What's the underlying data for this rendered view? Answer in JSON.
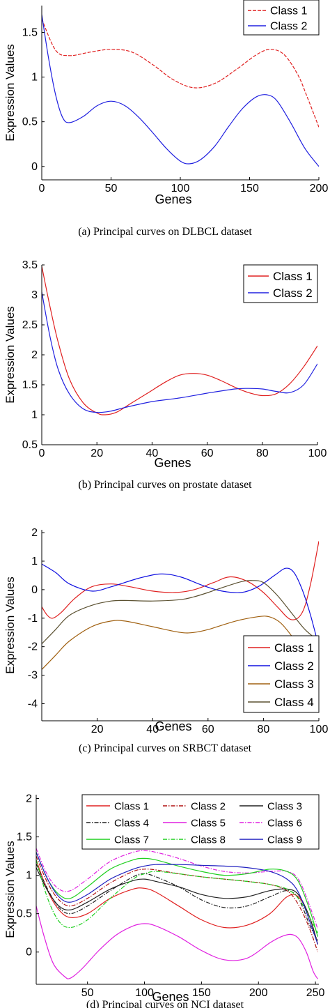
{
  "chart_data": [
    {
      "type": "line",
      "xlabel": "Genes",
      "ylabel": "Expression Values",
      "caption": "(a)  Principal curves on DLBCL dataset",
      "xlim": [
        0,
        200
      ],
      "ylim": [
        -0.15,
        1.8
      ],
      "xticks": [
        0,
        50,
        100,
        150,
        200
      ],
      "yticks": [
        0,
        0.5,
        1,
        1.5
      ],
      "xtick_labels": [
        "0",
        "50",
        "100",
        "150",
        "200"
      ],
      "ytick_labels": [
        "0",
        "0.5",
        "1",
        "1.5"
      ],
      "legend_position": "top-right",
      "series": [
        {
          "name": "Class 1",
          "color": "#e02020",
          "dash": "dashed",
          "x": [
            0,
            10,
            20,
            35,
            50,
            65,
            80,
            95,
            110,
            125,
            140,
            155,
            165,
            175,
            185,
            192,
            200
          ],
          "y": [
            1.65,
            1.3,
            1.24,
            1.28,
            1.31,
            1.28,
            1.14,
            0.97,
            0.88,
            0.93,
            1.08,
            1.25,
            1.31,
            1.25,
            1.02,
            0.76,
            0.44
          ]
        },
        {
          "name": "Class 2",
          "color": "#2020e0",
          "dash": "solid",
          "x": [
            0,
            5,
            10,
            15,
            20,
            30,
            40,
            50,
            60,
            70,
            80,
            90,
            100,
            107,
            115,
            125,
            135,
            145,
            155,
            163,
            170,
            180,
            190,
            200
          ],
          "y": [
            1.7,
            1.2,
            0.8,
            0.55,
            0.49,
            0.56,
            0.68,
            0.73,
            0.68,
            0.55,
            0.38,
            0.2,
            0.06,
            0.03,
            0.08,
            0.23,
            0.45,
            0.65,
            0.78,
            0.8,
            0.73,
            0.48,
            0.2,
            0.0
          ]
        }
      ]
    },
    {
      "type": "line",
      "xlabel": "Genes",
      "ylabel": "Expression Values",
      "caption": "(b)  Principal curves on prostate dataset",
      "xlim": [
        0,
        100
      ],
      "ylim": [
        0.5,
        3.5
      ],
      "xticks": [
        0,
        20,
        40,
        60,
        80,
        100
      ],
      "yticks": [
        0.5,
        1,
        1.5,
        2,
        2.5,
        3,
        3.5
      ],
      "xtick_labels": [
        "0",
        "20",
        "40",
        "60",
        "80",
        "100"
      ],
      "ytick_labels": [
        "0.5",
        "1",
        "1.5",
        "2",
        "2.5",
        "3",
        "3.5"
      ],
      "legend_position": "top-right",
      "series": [
        {
          "name": "Class 1",
          "color": "#e02020",
          "dash": "solid",
          "x": [
            0,
            3,
            6,
            10,
            15,
            20,
            23,
            27,
            32,
            38,
            45,
            50,
            55,
            60,
            65,
            70,
            75,
            80,
            85,
            90,
            95,
            100
          ],
          "y": [
            3.48,
            2.8,
            2.2,
            1.6,
            1.2,
            1.03,
            1.0,
            1.04,
            1.18,
            1.35,
            1.55,
            1.66,
            1.69,
            1.66,
            1.57,
            1.46,
            1.37,
            1.32,
            1.35,
            1.52,
            1.8,
            2.15
          ]
        },
        {
          "name": "Class 2",
          "color": "#2020e0",
          "dash": "solid",
          "x": [
            0,
            3,
            6,
            10,
            15,
            20,
            25,
            30,
            40,
            50,
            60,
            70,
            75,
            80,
            85,
            90,
            95,
            100
          ],
          "y": [
            3.05,
            2.3,
            1.75,
            1.35,
            1.1,
            1.04,
            1.06,
            1.12,
            1.22,
            1.28,
            1.36,
            1.43,
            1.44,
            1.43,
            1.39,
            1.37,
            1.5,
            1.85
          ]
        }
      ]
    },
    {
      "type": "line",
      "xlabel": "Genes",
      "ylabel": "Expression Values",
      "caption": "(c)  Principal curves on SRBCT dataset",
      "xlim": [
        0,
        100
      ],
      "ylim": [
        -4.6,
        2.1
      ],
      "xticks": [
        20,
        40,
        60,
        80,
        100
      ],
      "yticks": [
        -4,
        -3,
        -2,
        -1,
        0,
        1,
        2
      ],
      "xtick_labels": [
        "20",
        "40",
        "60",
        "80",
        "100"
      ],
      "ytick_labels": [
        "-4",
        "-3",
        "-2",
        "-1",
        "0",
        "1",
        "2"
      ],
      "legend_position": "bottom-right",
      "series": [
        {
          "name": "Class 1",
          "color": "#e02020",
          "dash": "solid",
          "x": [
            0,
            2,
            4,
            7,
            12,
            18,
            25,
            32,
            40,
            48,
            55,
            62,
            68,
            74,
            80,
            85,
            90,
            94,
            97,
            100
          ],
          "y": [
            -0.6,
            -0.9,
            -1.0,
            -0.8,
            -0.3,
            0.1,
            0.2,
            0.1,
            -0.05,
            -0.1,
            0.0,
            0.25,
            0.45,
            0.3,
            -0.1,
            -0.6,
            -1.05,
            -0.8,
            0.2,
            1.7
          ]
        },
        {
          "name": "Class 2",
          "color": "#1010e0",
          "dash": "solid",
          "x": [
            0,
            5,
            10,
            18,
            25,
            35,
            43,
            50,
            58,
            65,
            72,
            78,
            84,
            88,
            91,
            94,
            97,
            100
          ],
          "y": [
            0.9,
            0.6,
            0.2,
            -0.05,
            0.1,
            0.4,
            0.55,
            0.45,
            0.15,
            -0.05,
            -0.1,
            0.1,
            0.5,
            0.75,
            0.6,
            0.0,
            -0.9,
            -2.0
          ]
        },
        {
          "name": "Class 3",
          "color": "#a06010",
          "dash": "solid",
          "x": [
            0,
            5,
            10,
            18,
            25,
            30,
            40,
            50,
            55,
            60,
            70,
            78,
            82,
            86,
            90,
            93
          ],
          "y": [
            -2.8,
            -2.3,
            -1.8,
            -1.3,
            -1.1,
            -1.1,
            -1.3,
            -1.5,
            -1.5,
            -1.4,
            -1.1,
            -0.95,
            -0.95,
            -1.15,
            -1.6,
            -2.05
          ]
        },
        {
          "name": "Class 4",
          "color": "#5a5030",
          "dash": "solid",
          "x": [
            0,
            5,
            10,
            18,
            25,
            30,
            40,
            50,
            55,
            60,
            66,
            72,
            76,
            80,
            85,
            90,
            95,
            100
          ],
          "y": [
            -1.9,
            -1.4,
            -0.9,
            -0.55,
            -0.4,
            -0.38,
            -0.4,
            -0.35,
            -0.25,
            -0.1,
            0.1,
            0.28,
            0.32,
            0.25,
            -0.2,
            -0.8,
            -1.4,
            -1.8
          ]
        }
      ]
    },
    {
      "type": "line",
      "xlabel": "Genes",
      "ylabel": "Expression Values",
      "caption": "(d)  Principal curves on NCI dataset",
      "xlim": [
        5,
        253
      ],
      "ylim": [
        -0.42,
        2.05
      ],
      "xticks": [
        50,
        100,
        150,
        200,
        250
      ],
      "yticks": [
        0,
        0.5,
        1,
        1.5,
        2
      ],
      "xtick_labels": [
        "50",
        "100",
        "150",
        "200",
        "250"
      ],
      "ytick_labels": [
        "0",
        "0.5",
        "1",
        "1.5",
        "2"
      ],
      "legend_position": "top",
      "series": [
        {
          "name": "Class 1",
          "color": "#e02020",
          "dash": "solid",
          "x": [
            5,
            15,
            25,
            35,
            50,
            70,
            90,
            100,
            110,
            130,
            150,
            170,
            190,
            210,
            225,
            235,
            245,
            252
          ],
          "y": [
            1.2,
            0.8,
            0.55,
            0.45,
            0.5,
            0.7,
            0.82,
            0.83,
            0.78,
            0.6,
            0.42,
            0.32,
            0.35,
            0.5,
            0.72,
            0.72,
            0.45,
            0.1
          ]
        },
        {
          "name": "Class 2",
          "color": "#b01010",
          "dash": "dashdot",
          "x": [
            5,
            15,
            25,
            35,
            50,
            70,
            90,
            100,
            110,
            130,
            150,
            170,
            190,
            210,
            225,
            235,
            245,
            252
          ],
          "y": [
            1.25,
            0.9,
            0.68,
            0.6,
            0.7,
            0.9,
            1.05,
            1.08,
            1.07,
            1.02,
            0.98,
            0.95,
            0.92,
            0.88,
            0.8,
            0.62,
            0.3,
            0.0
          ]
        },
        {
          "name": "Class 3",
          "color": "#202020",
          "dash": "solid",
          "x": [
            5,
            15,
            25,
            35,
            50,
            70,
            90,
            100,
            110,
            130,
            150,
            170,
            190,
            210,
            225,
            235,
            245,
            252
          ],
          "y": [
            1.1,
            0.8,
            0.6,
            0.55,
            0.65,
            0.82,
            0.93,
            0.95,
            0.92,
            0.85,
            0.75,
            0.7,
            0.72,
            0.8,
            0.82,
            0.75,
            0.45,
            0.1
          ]
        },
        {
          "name": "Class 4",
          "color": "#202020",
          "dash": "dashdot",
          "x": [
            5,
            15,
            25,
            35,
            50,
            70,
            90,
            100,
            110,
            130,
            150,
            170,
            190,
            210,
            225,
            235,
            245,
            252
          ],
          "y": [
            1.15,
            0.82,
            0.58,
            0.5,
            0.6,
            0.8,
            0.98,
            1.02,
            0.98,
            0.85,
            0.68,
            0.58,
            0.6,
            0.72,
            0.8,
            0.7,
            0.35,
            0.15
          ]
        },
        {
          "name": "Class 5",
          "color": "#e020e0",
          "dash": "solid",
          "x": [
            5,
            12,
            20,
            30,
            35,
            45,
            60,
            75,
            90,
            100,
            110,
            130,
            150,
            170,
            190,
            210,
            220,
            228,
            235,
            242,
            248,
            252
          ],
          "y": [
            0.6,
            0.2,
            -0.15,
            -0.32,
            -0.34,
            -0.22,
            0.02,
            0.22,
            0.34,
            0.37,
            0.34,
            0.2,
            0.02,
            -0.1,
            -0.08,
            0.12,
            0.2,
            0.23,
            0.18,
            0.0,
            -0.25,
            -0.35
          ]
        },
        {
          "name": "Class 6",
          "color": "#e020e0",
          "dash": "dashdot",
          "x": [
            5,
            15,
            25,
            35,
            50,
            70,
            90,
            100,
            110,
            130,
            150,
            170,
            190,
            210,
            225,
            235,
            245,
            252
          ],
          "y": [
            1.35,
            1.0,
            0.82,
            0.8,
            0.95,
            1.18,
            1.3,
            1.32,
            1.3,
            1.22,
            1.12,
            1.05,
            1.03,
            1.05,
            1.05,
            0.95,
            0.6,
            0.3
          ]
        },
        {
          "name": "Class 7",
          "color": "#20d020",
          "dash": "solid",
          "x": [
            5,
            15,
            25,
            35,
            50,
            70,
            90,
            100,
            110,
            130,
            150,
            170,
            190,
            210,
            225,
            235,
            245,
            252
          ],
          "y": [
            1.3,
            0.95,
            0.75,
            0.7,
            0.85,
            1.08,
            1.2,
            1.22,
            1.2,
            1.12,
            1.05,
            1.0,
            1.02,
            1.08,
            1.05,
            0.92,
            0.55,
            0.2
          ]
        },
        {
          "name": "Class 8",
          "color": "#20d020",
          "dash": "dashdot",
          "x": [
            5,
            15,
            25,
            35,
            50,
            70,
            90,
            100,
            110,
            130,
            150,
            170,
            190,
            210,
            225,
            235,
            245,
            252
          ],
          "y": [
            1.2,
            0.7,
            0.4,
            0.32,
            0.42,
            0.7,
            0.95,
            1.02,
            1.05,
            1.02,
            0.98,
            0.95,
            0.92,
            0.88,
            0.82,
            0.7,
            0.45,
            0.25
          ]
        },
        {
          "name": "Class 9",
          "color": "#2020c0",
          "dash": "solid",
          "x": [
            5,
            15,
            25,
            35,
            50,
            70,
            90,
            100,
            110,
            130,
            150,
            170,
            190,
            210,
            225,
            235,
            245,
            252
          ],
          "y": [
            1.3,
            0.95,
            0.72,
            0.65,
            0.75,
            0.95,
            1.08,
            1.12,
            1.14,
            1.14,
            1.13,
            1.12,
            1.1,
            1.05,
            0.95,
            0.78,
            0.4,
            0.1
          ]
        }
      ]
    }
  ]
}
